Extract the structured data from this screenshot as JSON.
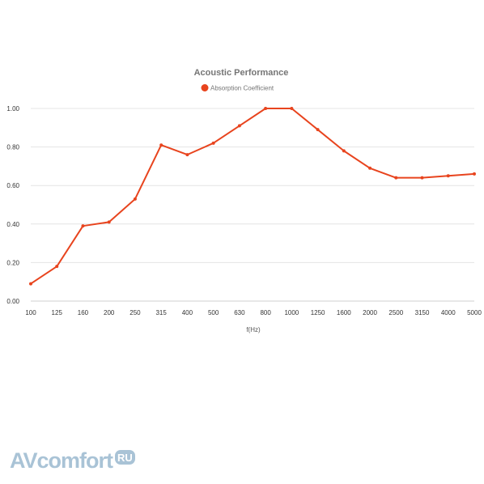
{
  "chart_data": {
    "type": "line",
    "title": "Acoustic Performance",
    "xlabel": "f(Hz)",
    "ylabel": "",
    "categories": [
      "100",
      "125",
      "160",
      "200",
      "250",
      "315",
      "400",
      "500",
      "630",
      "800",
      "1000",
      "1250",
      "1600",
      "2000",
      "2500",
      "3150",
      "4000",
      "5000"
    ],
    "series": [
      {
        "name": "Absorption Coefficient",
        "color": "#e8441e",
        "values": [
          0.09,
          0.18,
          0.39,
          0.41,
          0.53,
          0.81,
          0.76,
          0.82,
          0.91,
          1.0,
          1.0,
          0.89,
          0.78,
          0.69,
          0.64,
          0.64,
          0.65,
          0.66
        ]
      }
    ],
    "ylim": [
      0,
      1
    ],
    "yticks": [
      "0.00",
      "0.20",
      "0.40",
      "0.60",
      "0.80",
      "1.00"
    ],
    "grid": true,
    "legend_position": "top-center"
  },
  "watermark": {
    "text": "AVcomfort",
    "badge": "RU"
  },
  "colors": {
    "line": "#e8441e",
    "grid": "#e4e4e4",
    "watermark": "#a9c3d6"
  }
}
